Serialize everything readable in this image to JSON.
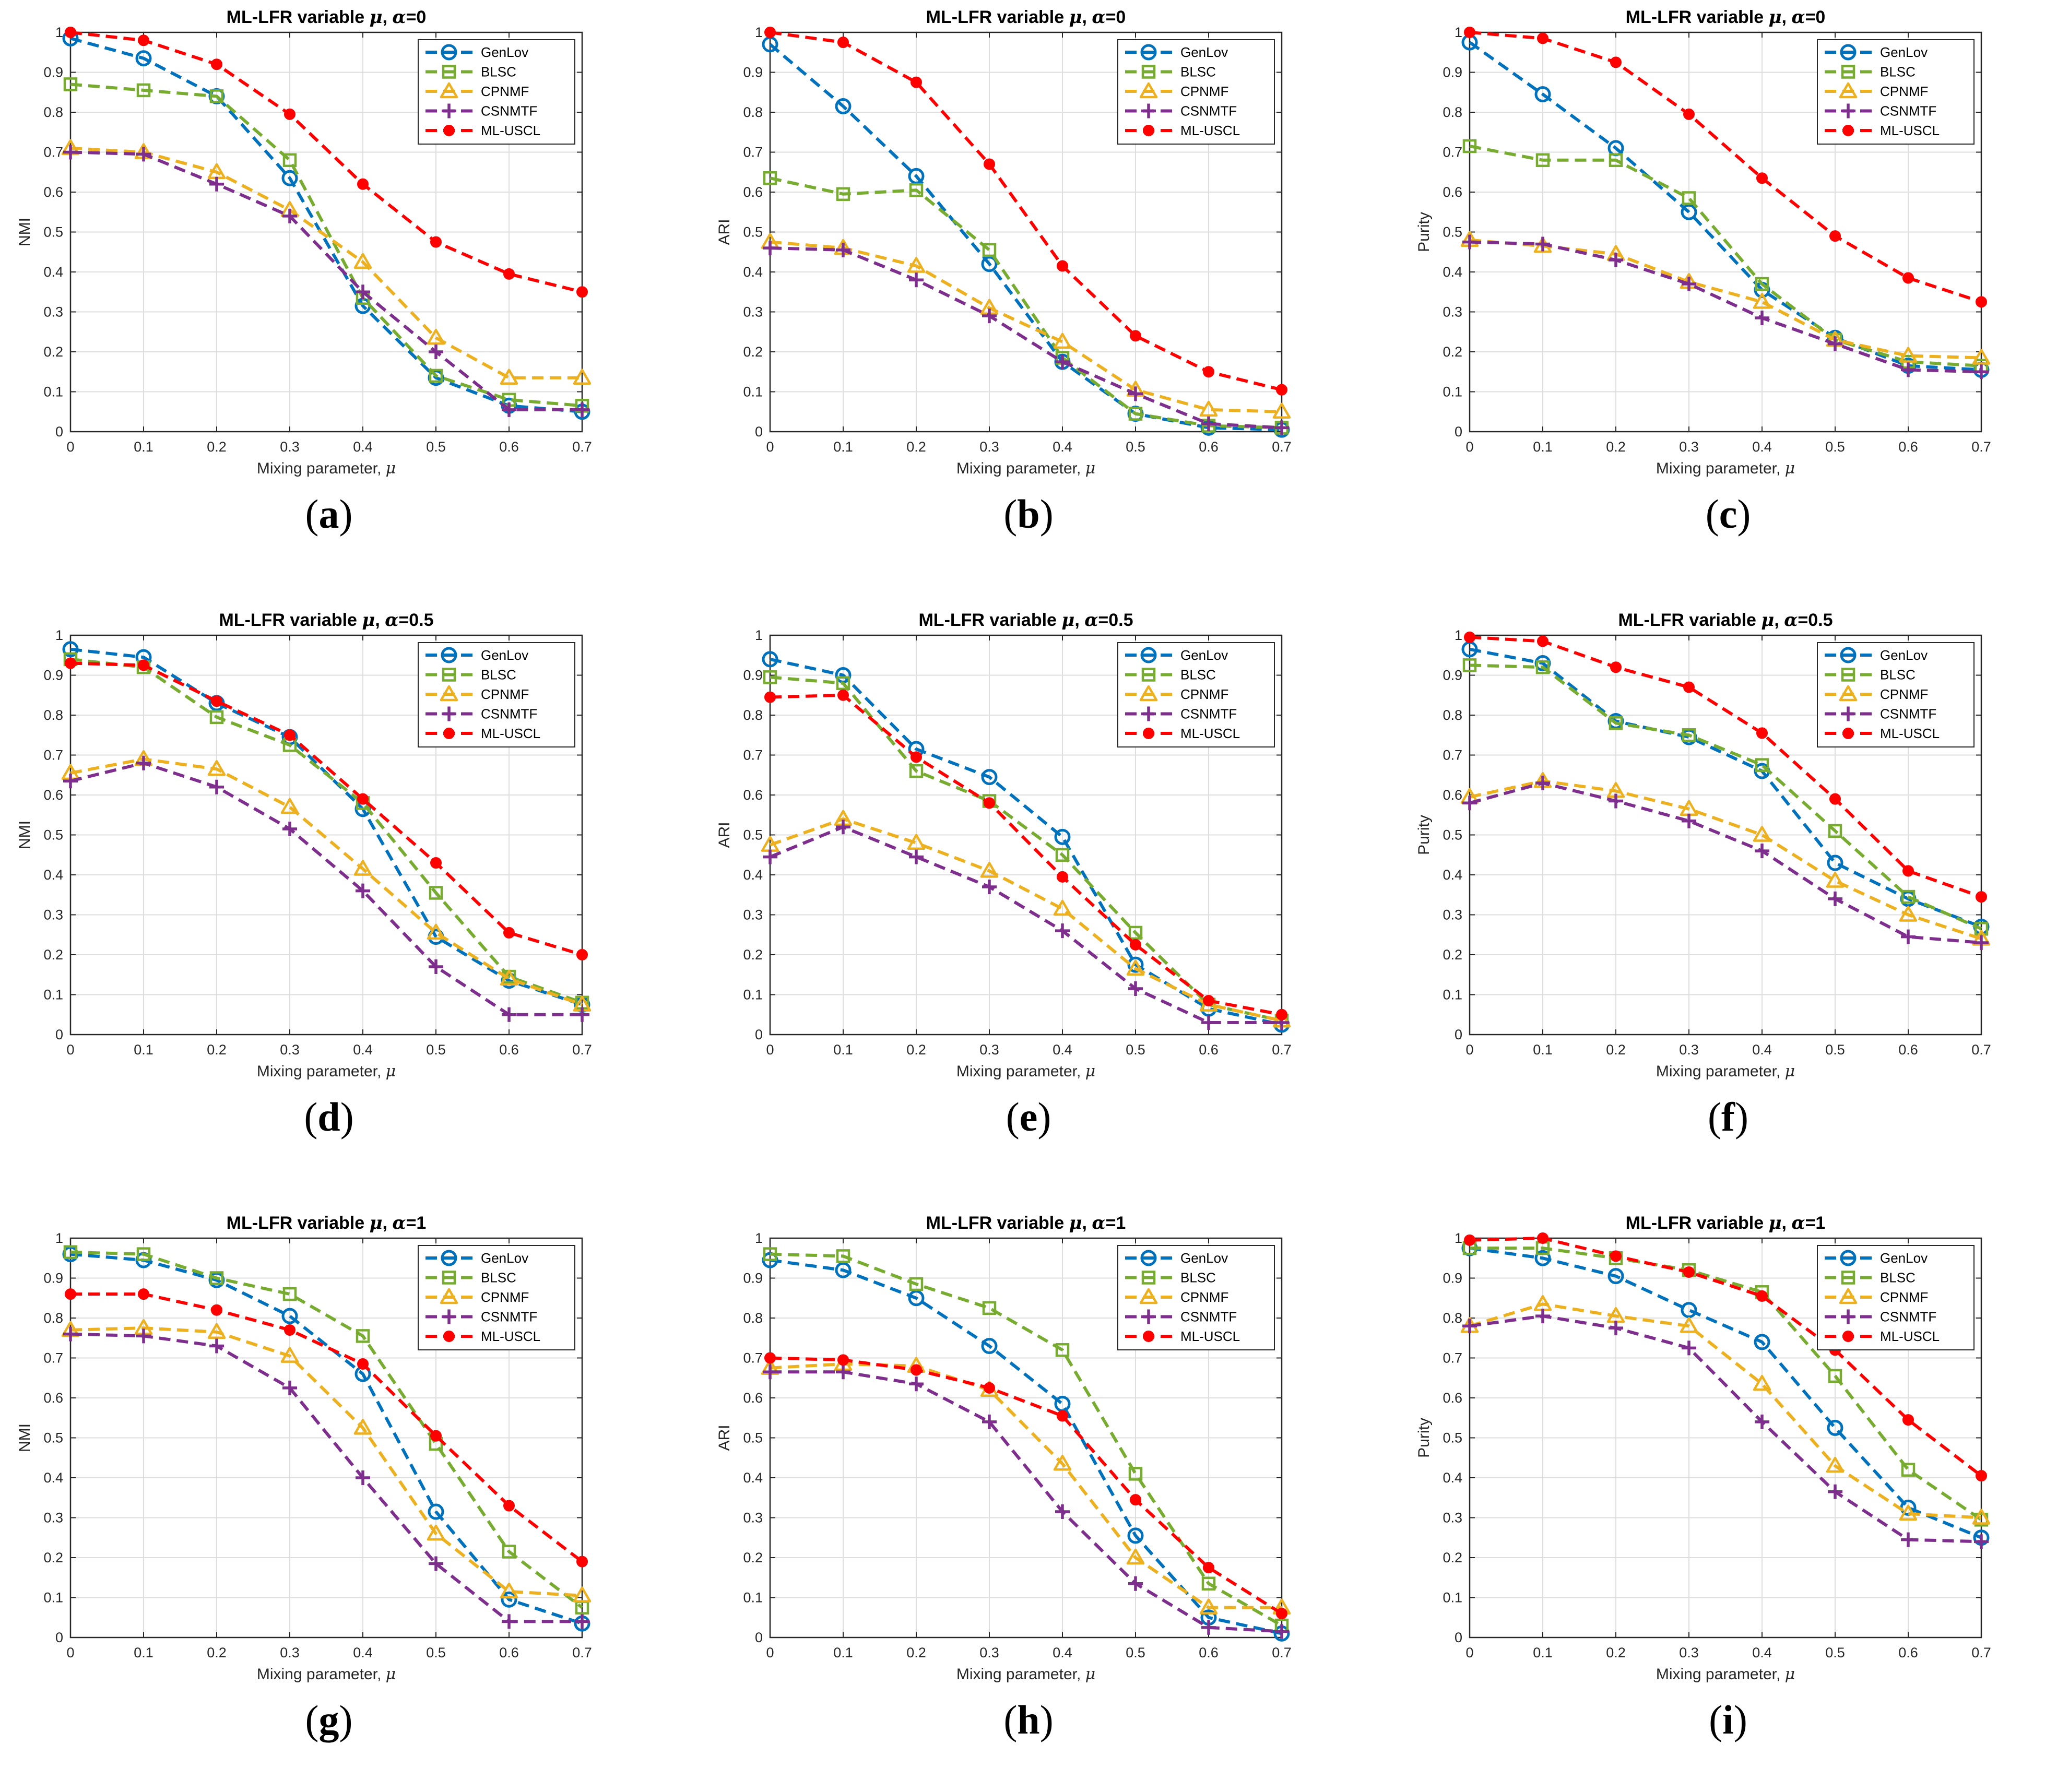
{
  "figure": {
    "series_names": [
      "GenLov",
      "BLSC",
      "CPNMF",
      "CSNMTF",
      "ML-USCL"
    ],
    "series_colors": [
      "#0072BD",
      "#77AC30",
      "#EDB120",
      "#7E2F8E",
      "#FF0000"
    ],
    "series_markers": [
      "circle",
      "square",
      "triangle",
      "plus",
      "dot"
    ],
    "xlabel_text": "Mixing parameter, ",
    "x_ticks": [
      "0",
      "0.1",
      "0.2",
      "0.3",
      "0.4",
      "0.5",
      "0.6",
      "0.7"
    ],
    "y_ticks": [
      "0",
      "0.1",
      "0.2",
      "0.3",
      "0.4",
      "0.5",
      "0.6",
      "0.7",
      "0.8",
      "0.9",
      "1"
    ]
  },
  "chart_data": [
    {
      "type": "line",
      "panel": "a",
      "caption_letter": "a",
      "title_prefix": "ML-LFR variable ",
      "title_suffix": "=0",
      "xlabel": "Mixing parameter, μ",
      "ylabel": "NMI",
      "x": [
        0,
        0.1,
        0.2,
        0.3,
        0.4,
        0.5,
        0.6,
        0.7
      ],
      "xlim": [
        0,
        0.7
      ],
      "ylim": [
        0,
        1
      ],
      "series": [
        {
          "name": "GenLov",
          "values": [
            0.985,
            0.935,
            0.84,
            0.635,
            0.315,
            0.135,
            0.065,
            0.05
          ]
        },
        {
          "name": "BLSC",
          "values": [
            0.87,
            0.855,
            0.84,
            0.68,
            0.335,
            0.14,
            0.08,
            0.065
          ]
        },
        {
          "name": "CPNMF",
          "values": [
            0.71,
            0.7,
            0.65,
            0.555,
            0.425,
            0.235,
            0.135,
            0.135
          ]
        },
        {
          "name": "CSNMTF",
          "values": [
            0.7,
            0.695,
            0.62,
            0.54,
            0.35,
            0.2,
            0.055,
            0.055
          ]
        },
        {
          "name": "ML-USCL",
          "values": [
            1.0,
            0.98,
            0.92,
            0.795,
            0.62,
            0.475,
            0.395,
            0.35
          ]
        }
      ]
    },
    {
      "type": "line",
      "panel": "b",
      "caption_letter": "b",
      "title_prefix": "ML-LFR variable ",
      "title_suffix": "=0",
      "xlabel": "Mixing parameter, μ",
      "ylabel": "ARI",
      "x": [
        0,
        0.1,
        0.2,
        0.3,
        0.4,
        0.5,
        0.6,
        0.7
      ],
      "xlim": [
        0,
        0.7
      ],
      "ylim": [
        0,
        1
      ],
      "series": [
        {
          "name": "GenLov",
          "values": [
            0.97,
            0.815,
            0.64,
            0.42,
            0.175,
            0.045,
            0.01,
            0.005
          ]
        },
        {
          "name": "BLSC",
          "values": [
            0.635,
            0.595,
            0.605,
            0.455,
            0.185,
            0.045,
            0.015,
            0.01
          ]
        },
        {
          "name": "CPNMF",
          "values": [
            0.475,
            0.46,
            0.415,
            0.31,
            0.225,
            0.105,
            0.055,
            0.05
          ]
        },
        {
          "name": "CSNMTF",
          "values": [
            0.46,
            0.455,
            0.38,
            0.29,
            0.175,
            0.095,
            0.02,
            0.01
          ]
        },
        {
          "name": "ML-USCL",
          "values": [
            1.0,
            0.975,
            0.875,
            0.67,
            0.415,
            0.24,
            0.15,
            0.105
          ]
        }
      ]
    },
    {
      "type": "line",
      "panel": "c",
      "caption_letter": "c",
      "title_prefix": "ML-LFR variable ",
      "title_suffix": "=0",
      "xlabel": "Mixing parameter, μ",
      "ylabel": "Purity",
      "x": [
        0,
        0.1,
        0.2,
        0.3,
        0.4,
        0.5,
        0.6,
        0.7
      ],
      "xlim": [
        0,
        0.7
      ],
      "ylim": [
        0,
        1
      ],
      "series": [
        {
          "name": "GenLov",
          "values": [
            0.975,
            0.845,
            0.71,
            0.55,
            0.355,
            0.235,
            0.165,
            0.155
          ]
        },
        {
          "name": "BLSC",
          "values": [
            0.715,
            0.68,
            0.68,
            0.585,
            0.37,
            0.23,
            0.175,
            0.165
          ]
        },
        {
          "name": "CPNMF",
          "values": [
            0.48,
            0.465,
            0.445,
            0.375,
            0.325,
            0.23,
            0.19,
            0.185
          ]
        },
        {
          "name": "CSNMTF",
          "values": [
            0.475,
            0.47,
            0.43,
            0.37,
            0.285,
            0.22,
            0.155,
            0.15
          ]
        },
        {
          "name": "ML-USCL",
          "values": [
            1.0,
            0.985,
            0.925,
            0.795,
            0.635,
            0.49,
            0.385,
            0.325
          ]
        }
      ]
    },
    {
      "type": "line",
      "panel": "d",
      "caption_letter": "d",
      "title_prefix": "ML-LFR variable ",
      "title_suffix": "=0.5",
      "xlabel": "Mixing parameter, μ",
      "ylabel": "NMI",
      "x": [
        0,
        0.1,
        0.2,
        0.3,
        0.4,
        0.5,
        0.6,
        0.7
      ],
      "xlim": [
        0,
        0.7
      ],
      "ylim": [
        0,
        1
      ],
      "series": [
        {
          "name": "GenLov",
          "values": [
            0.965,
            0.945,
            0.83,
            0.745,
            0.565,
            0.245,
            0.135,
            0.075
          ]
        },
        {
          "name": "BLSC",
          "values": [
            0.94,
            0.92,
            0.795,
            0.725,
            0.58,
            0.355,
            0.145,
            0.08
          ]
        },
        {
          "name": "CPNMF",
          "values": [
            0.655,
            0.69,
            0.665,
            0.57,
            0.415,
            0.255,
            0.14,
            0.075
          ]
        },
        {
          "name": "CSNMTF",
          "values": [
            0.635,
            0.68,
            0.62,
            0.515,
            0.36,
            0.17,
            0.05,
            0.05
          ]
        },
        {
          "name": "ML-USCL",
          "values": [
            0.93,
            0.925,
            0.835,
            0.75,
            0.59,
            0.43,
            0.255,
            0.2
          ]
        }
      ]
    },
    {
      "type": "line",
      "panel": "e",
      "caption_letter": "e",
      "title_prefix": "ML-LFR variable ",
      "title_suffix": "=0.5",
      "xlabel": "Mixing parameter, μ",
      "ylabel": "ARI",
      "x": [
        0,
        0.1,
        0.2,
        0.3,
        0.4,
        0.5,
        0.6,
        0.7
      ],
      "xlim": [
        0,
        0.7
      ],
      "ylim": [
        0,
        1
      ],
      "series": [
        {
          "name": "GenLov",
          "values": [
            0.94,
            0.9,
            0.715,
            0.645,
            0.495,
            0.175,
            0.065,
            0.025
          ]
        },
        {
          "name": "BLSC",
          "values": [
            0.895,
            0.88,
            0.66,
            0.585,
            0.45,
            0.255,
            0.075,
            0.035
          ]
        },
        {
          "name": "CPNMF",
          "values": [
            0.475,
            0.54,
            0.48,
            0.41,
            0.315,
            0.165,
            0.075,
            0.035
          ]
        },
        {
          "name": "CSNMTF",
          "values": [
            0.445,
            0.52,
            0.445,
            0.37,
            0.26,
            0.115,
            0.03,
            0.03
          ]
        },
        {
          "name": "ML-USCL",
          "values": [
            0.845,
            0.85,
            0.695,
            0.58,
            0.395,
            0.225,
            0.085,
            0.05
          ]
        }
      ]
    },
    {
      "type": "line",
      "panel": "f",
      "caption_letter": "f",
      "title_prefix": "ML-LFR variable ",
      "title_suffix": "=0.5",
      "xlabel": "Mixing parameter, μ",
      "ylabel": "Purity",
      "x": [
        0,
        0.1,
        0.2,
        0.3,
        0.4,
        0.5,
        0.6,
        0.7
      ],
      "xlim": [
        0,
        0.7
      ],
      "ylim": [
        0,
        1
      ],
      "series": [
        {
          "name": "GenLov",
          "values": [
            0.965,
            0.93,
            0.785,
            0.745,
            0.66,
            0.43,
            0.34,
            0.27
          ]
        },
        {
          "name": "BLSC",
          "values": [
            0.925,
            0.92,
            0.78,
            0.75,
            0.675,
            0.51,
            0.345,
            0.265
          ]
        },
        {
          "name": "CPNMF",
          "values": [
            0.595,
            0.635,
            0.61,
            0.565,
            0.5,
            0.385,
            0.3,
            0.24
          ]
        },
        {
          "name": "CSNMTF",
          "values": [
            0.58,
            0.63,
            0.585,
            0.535,
            0.46,
            0.34,
            0.245,
            0.23
          ]
        },
        {
          "name": "ML-USCL",
          "values": [
            0.995,
            0.985,
            0.92,
            0.87,
            0.755,
            0.59,
            0.41,
            0.345
          ]
        }
      ]
    },
    {
      "type": "line",
      "panel": "g",
      "caption_letter": "g",
      "title_prefix": "ML-LFR variable ",
      "title_suffix": "=1",
      "xlabel": "Mixing parameter, μ",
      "ylabel": "NMI",
      "x": [
        0,
        0.1,
        0.2,
        0.3,
        0.4,
        0.5,
        0.6,
        0.7
      ],
      "xlim": [
        0,
        0.7
      ],
      "ylim": [
        0,
        1
      ],
      "series": [
        {
          "name": "GenLov",
          "values": [
            0.96,
            0.945,
            0.895,
            0.805,
            0.66,
            0.315,
            0.095,
            0.035
          ]
        },
        {
          "name": "BLSC",
          "values": [
            0.965,
            0.96,
            0.9,
            0.86,
            0.755,
            0.485,
            0.215,
            0.075
          ]
        },
        {
          "name": "CPNMF",
          "values": [
            0.77,
            0.775,
            0.765,
            0.705,
            0.525,
            0.26,
            0.115,
            0.105
          ]
        },
        {
          "name": "CSNMTF",
          "values": [
            0.76,
            0.755,
            0.73,
            0.625,
            0.4,
            0.185,
            0.04,
            0.04
          ]
        },
        {
          "name": "ML-USCL",
          "values": [
            0.86,
            0.86,
            0.82,
            0.77,
            0.685,
            0.505,
            0.33,
            0.19
          ]
        }
      ]
    },
    {
      "type": "line",
      "panel": "h",
      "caption_letter": "h",
      "title_prefix": "ML-LFR variable ",
      "title_suffix": "=1",
      "xlabel": "Mixing parameter, μ",
      "ylabel": "ARI",
      "x": [
        0,
        0.1,
        0.2,
        0.3,
        0.4,
        0.5,
        0.6,
        0.7
      ],
      "xlim": [
        0,
        0.7
      ],
      "ylim": [
        0,
        1
      ],
      "series": [
        {
          "name": "GenLov",
          "values": [
            0.945,
            0.92,
            0.85,
            0.73,
            0.585,
            0.255,
            0.05,
            0.01
          ]
        },
        {
          "name": "BLSC",
          "values": [
            0.96,
            0.955,
            0.885,
            0.825,
            0.72,
            0.41,
            0.135,
            0.03
          ]
        },
        {
          "name": "CPNMF",
          "values": [
            0.675,
            0.685,
            0.68,
            0.62,
            0.435,
            0.2,
            0.075,
            0.075
          ]
        },
        {
          "name": "CSNMTF",
          "values": [
            0.665,
            0.665,
            0.635,
            0.54,
            0.315,
            0.135,
            0.025,
            0.015
          ]
        },
        {
          "name": "ML-USCL",
          "values": [
            0.7,
            0.695,
            0.67,
            0.625,
            0.555,
            0.345,
            0.175,
            0.06
          ]
        }
      ]
    },
    {
      "type": "line",
      "panel": "i",
      "caption_letter": "i",
      "title_prefix": "ML-LFR variable ",
      "title_suffix": "=1",
      "xlabel": "Mixing parameter, μ",
      "ylabel": "Purity",
      "x": [
        0,
        0.1,
        0.2,
        0.3,
        0.4,
        0.5,
        0.6,
        0.7
      ],
      "xlim": [
        0,
        0.7
      ],
      "ylim": [
        0,
        1
      ],
      "series": [
        {
          "name": "GenLov",
          "values": [
            0.975,
            0.95,
            0.905,
            0.82,
            0.74,
            0.525,
            0.325,
            0.25
          ]
        },
        {
          "name": "BLSC",
          "values": [
            0.975,
            0.975,
            0.95,
            0.92,
            0.865,
            0.655,
            0.42,
            0.295
          ]
        },
        {
          "name": "CPNMF",
          "values": [
            0.78,
            0.835,
            0.805,
            0.78,
            0.635,
            0.43,
            0.31,
            0.3
          ]
        },
        {
          "name": "CSNMTF",
          "values": [
            0.78,
            0.805,
            0.775,
            0.725,
            0.54,
            0.365,
            0.245,
            0.24
          ]
        },
        {
          "name": "ML-USCL",
          "values": [
            0.995,
            1.0,
            0.955,
            0.915,
            0.855,
            0.72,
            0.545,
            0.405
          ]
        }
      ]
    }
  ]
}
